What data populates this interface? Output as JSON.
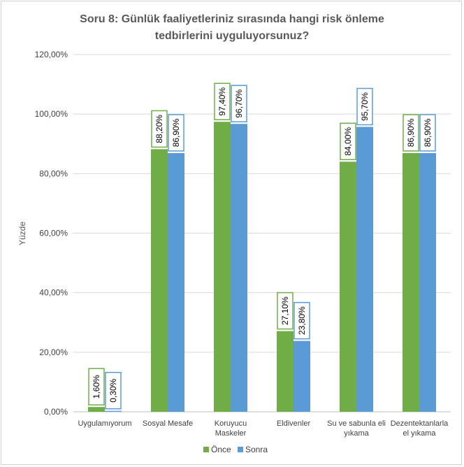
{
  "chart_data": {
    "type": "bar",
    "title_lines": [
      "Soru 8: Günlük faaliyetleriniz sırasında hangi risk önleme",
      "tedbirlerini uyguluyorsunuz?"
    ],
    "xlabel": "",
    "ylabel": "Yüzde",
    "ylim": [
      0,
      120
    ],
    "yticks": [
      "0,00%",
      "20,00%",
      "40,00%",
      "60,00%",
      "80,00%",
      "100,00%",
      "120,00%"
    ],
    "ytick_values": [
      0,
      20,
      40,
      60,
      80,
      100,
      120
    ],
    "grid": true,
    "legend_position": "bottom",
    "categories": [
      [
        "Uygulamıyorum"
      ],
      [
        "Sosyal Mesafe"
      ],
      [
        "Koruyucu",
        "Maskeler"
      ],
      [
        "Eldivenler"
      ],
      [
        "Su ve sabunla eli",
        "yıkama"
      ],
      [
        "Dezentektanlarla",
        "el yıkama"
      ]
    ],
    "series": [
      {
        "name": "Önce",
        "color": "#70ad47",
        "values": [
          1.6,
          88.2,
          97.4,
          27.1,
          84.0,
          86.9
        ],
        "labels": [
          "1,60%",
          "88,20%",
          "97,40%",
          "27,10%",
          "84,00%",
          "86,90%"
        ]
      },
      {
        "name": "Sonra",
        "color": "#5b9bd5",
        "values": [
          0.3,
          86.9,
          96.7,
          23.8,
          95.7,
          86.9
        ],
        "labels": [
          "0,30%",
          "86,90%",
          "96,70%",
          "23,80%",
          "95,70%",
          "86,90%"
        ]
      }
    ]
  }
}
